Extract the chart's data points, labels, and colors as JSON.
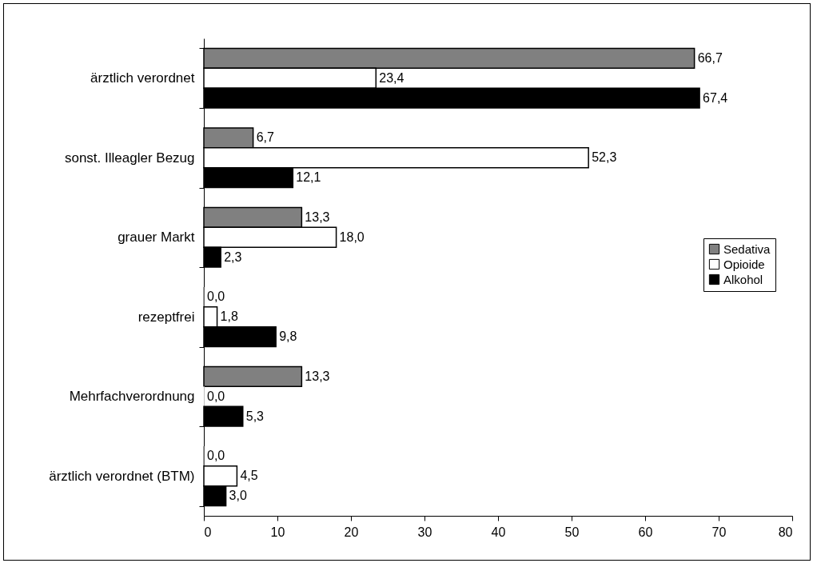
{
  "chart_data": {
    "type": "bar",
    "orientation": "horizontal",
    "categories": [
      "ärztlich verordnet",
      "sonst. Illeagler Bezug",
      "grauer Markt",
      "rezeptfrei",
      "Mehrfachverordnung",
      "ärztlich verordnet (BTM)"
    ],
    "series": [
      {
        "name": "Sedativa",
        "color": "#808080",
        "values": [
          66.7,
          6.7,
          13.3,
          0.0,
          13.3,
          0.0
        ],
        "value_labels": [
          "66,7",
          "6,7",
          "13,3",
          "0,0",
          "13,3",
          "0,0"
        ]
      },
      {
        "name": "Opioide",
        "color": "#ffffff",
        "values": [
          23.4,
          52.3,
          18.0,
          1.8,
          0.0,
          4.5
        ],
        "value_labels": [
          "23,4",
          "52,3",
          "18,0",
          "1,8",
          "0,0",
          "4,5"
        ]
      },
      {
        "name": "Alkohol",
        "color": "#000000",
        "values": [
          67.4,
          12.1,
          2.3,
          9.8,
          5.3,
          3.0
        ],
        "value_labels": [
          "67,4",
          "12,1",
          "2,3",
          "9,8",
          "5,3",
          "3,0"
        ]
      }
    ],
    "xlim": [
      0,
      80
    ],
    "xticks": [
      0,
      10,
      20,
      30,
      40,
      50,
      60,
      70,
      80
    ],
    "grid": false,
    "legend": "right"
  }
}
